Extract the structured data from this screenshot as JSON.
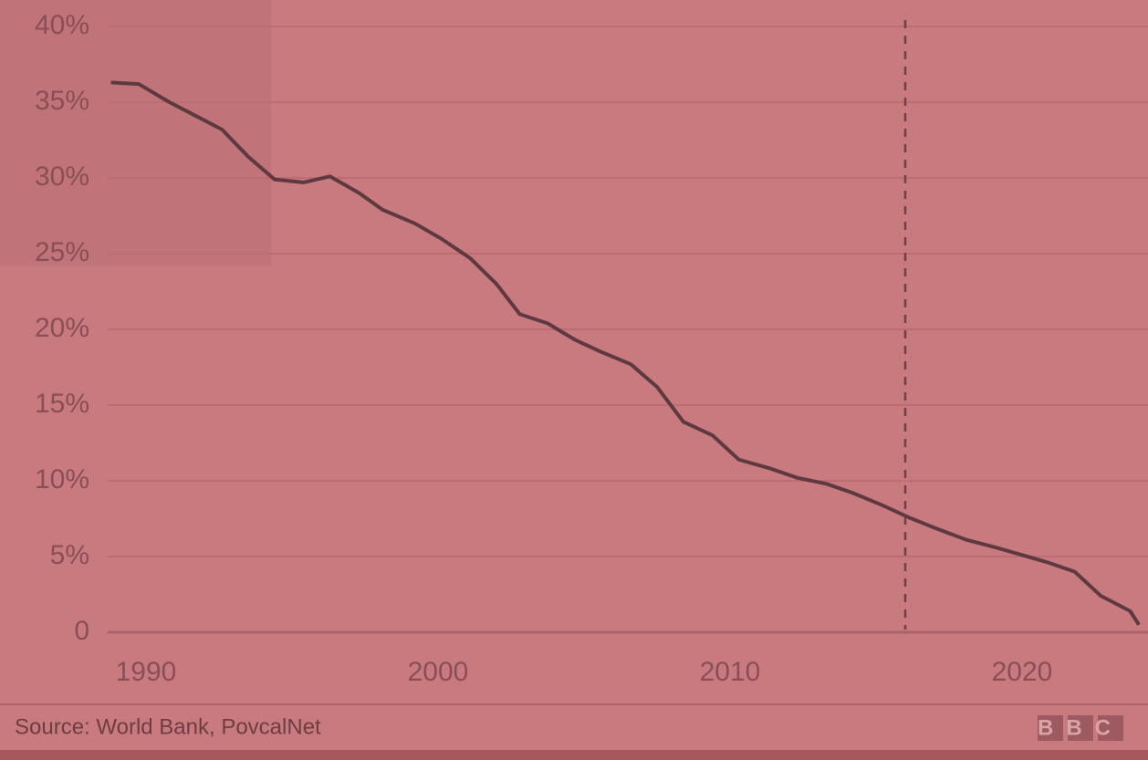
{
  "chart_data": {
    "type": "line",
    "x": [
      1988.8,
      1989.75,
      1990.8,
      1991.7,
      1992.6,
      1993.5,
      1994.4,
      1995.4,
      1996.3,
      1997.3,
      1998.1,
      1999.2,
      2000.1,
      2001.1,
      2002.0,
      2002.8,
      2003.75,
      2004.7,
      2005.6,
      2006.6,
      2007.5,
      2008.4,
      2009.4,
      2010.3,
      2011.4,
      2012.3,
      2013.3,
      2014.2,
      2015.2,
      2016.1,
      2017.0,
      2018.1,
      2019.1,
      2020.0,
      2020.9,
      2021.8,
      2022.7,
      2023.7,
      2024.0
    ],
    "series": [
      {
        "color": "#5e3a40",
        "values": [
          36.3,
          36.2,
          35.0,
          34.1,
          33.2,
          31.4,
          29.9,
          29.7,
          30.1,
          29.0,
          27.9,
          27.0,
          26.0,
          24.7,
          23.0,
          21.0,
          20.4,
          19.3,
          18.5,
          17.7,
          16.2,
          13.9,
          13.0,
          11.4,
          10.8,
          10.2,
          9.8,
          9.2,
          8.4,
          7.6,
          6.9,
          6.1,
          5.6,
          5.1,
          4.6,
          4.0,
          2.4,
          1.4,
          0.5
        ]
      }
    ],
    "xlim": [
      1988.75,
      2024.0
    ],
    "xticks": [
      1990,
      2000,
      2010,
      2020
    ],
    "ylim": [
      0,
      40
    ],
    "yticks": [
      0,
      {
        "value": 5,
        "label": "5%"
      },
      {
        "value": 10,
        "label": "10%"
      },
      {
        "value": 15,
        "label": "15%"
      },
      {
        "value": 20,
        "label": "20%"
      },
      {
        "value": 25,
        "label": "25%"
      },
      {
        "value": 30,
        "label": "30%"
      },
      {
        "value": 35,
        "label": "35%"
      },
      {
        "value": 40,
        "label": "40%"
      }
    ],
    "grid": true,
    "vline_x": 2016.0,
    "source": "Source: World Bank, PovcalNet",
    "logo": "BBC"
  }
}
